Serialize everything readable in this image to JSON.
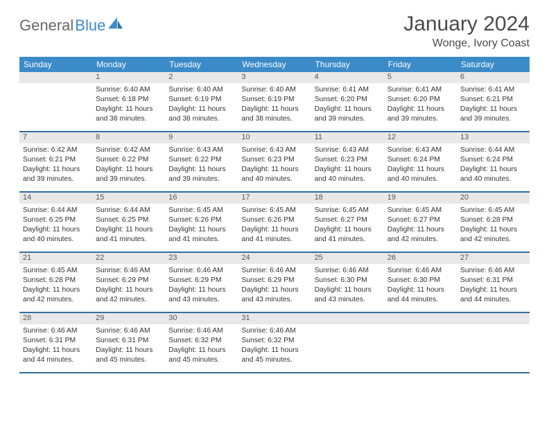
{
  "logo": {
    "word1": "General",
    "word2": "Blue"
  },
  "title": "January 2024",
  "location": "Wonge, Ivory Coast",
  "colors": {
    "header_bg": "#3b8bc9",
    "header_text": "#ffffff",
    "rule": "#2f6ea3",
    "daynum_bg": "#e8e8e8",
    "text": "#333333",
    "logo_gray": "#6a6a6a",
    "logo_blue": "#3b8bc9"
  },
  "day_labels": [
    "Sunday",
    "Monday",
    "Tuesday",
    "Wednesday",
    "Thursday",
    "Friday",
    "Saturday"
  ],
  "weeks": [
    [
      {
        "n": "",
        "sunrise": "",
        "sunset": "",
        "daylight": ""
      },
      {
        "n": "1",
        "sunrise": "Sunrise: 6:40 AM",
        "sunset": "Sunset: 6:18 PM",
        "daylight": "Daylight: 11 hours and 38 minutes."
      },
      {
        "n": "2",
        "sunrise": "Sunrise: 6:40 AM",
        "sunset": "Sunset: 6:19 PM",
        "daylight": "Daylight: 11 hours and 38 minutes."
      },
      {
        "n": "3",
        "sunrise": "Sunrise: 6:40 AM",
        "sunset": "Sunset: 6:19 PM",
        "daylight": "Daylight: 11 hours and 38 minutes."
      },
      {
        "n": "4",
        "sunrise": "Sunrise: 6:41 AM",
        "sunset": "Sunset: 6:20 PM",
        "daylight": "Daylight: 11 hours and 39 minutes."
      },
      {
        "n": "5",
        "sunrise": "Sunrise: 6:41 AM",
        "sunset": "Sunset: 6:20 PM",
        "daylight": "Daylight: 11 hours and 39 minutes."
      },
      {
        "n": "6",
        "sunrise": "Sunrise: 6:41 AM",
        "sunset": "Sunset: 6:21 PM",
        "daylight": "Daylight: 11 hours and 39 minutes."
      }
    ],
    [
      {
        "n": "7",
        "sunrise": "Sunrise: 6:42 AM",
        "sunset": "Sunset: 6:21 PM",
        "daylight": "Daylight: 11 hours and 39 minutes."
      },
      {
        "n": "8",
        "sunrise": "Sunrise: 6:42 AM",
        "sunset": "Sunset: 6:22 PM",
        "daylight": "Daylight: 11 hours and 39 minutes."
      },
      {
        "n": "9",
        "sunrise": "Sunrise: 6:43 AM",
        "sunset": "Sunset: 6:22 PM",
        "daylight": "Daylight: 11 hours and 39 minutes."
      },
      {
        "n": "10",
        "sunrise": "Sunrise: 6:43 AM",
        "sunset": "Sunset: 6:23 PM",
        "daylight": "Daylight: 11 hours and 40 minutes."
      },
      {
        "n": "11",
        "sunrise": "Sunrise: 6:43 AM",
        "sunset": "Sunset: 6:23 PM",
        "daylight": "Daylight: 11 hours and 40 minutes."
      },
      {
        "n": "12",
        "sunrise": "Sunrise: 6:43 AM",
        "sunset": "Sunset: 6:24 PM",
        "daylight": "Daylight: 11 hours and 40 minutes."
      },
      {
        "n": "13",
        "sunrise": "Sunrise: 6:44 AM",
        "sunset": "Sunset: 6:24 PM",
        "daylight": "Daylight: 11 hours and 40 minutes."
      }
    ],
    [
      {
        "n": "14",
        "sunrise": "Sunrise: 6:44 AM",
        "sunset": "Sunset: 6:25 PM",
        "daylight": "Daylight: 11 hours and 40 minutes."
      },
      {
        "n": "15",
        "sunrise": "Sunrise: 6:44 AM",
        "sunset": "Sunset: 6:25 PM",
        "daylight": "Daylight: 11 hours and 41 minutes."
      },
      {
        "n": "16",
        "sunrise": "Sunrise: 6:45 AM",
        "sunset": "Sunset: 6:26 PM",
        "daylight": "Daylight: 11 hours and 41 minutes."
      },
      {
        "n": "17",
        "sunrise": "Sunrise: 6:45 AM",
        "sunset": "Sunset: 6:26 PM",
        "daylight": "Daylight: 11 hours and 41 minutes."
      },
      {
        "n": "18",
        "sunrise": "Sunrise: 6:45 AM",
        "sunset": "Sunset: 6:27 PM",
        "daylight": "Daylight: 11 hours and 41 minutes."
      },
      {
        "n": "19",
        "sunrise": "Sunrise: 6:45 AM",
        "sunset": "Sunset: 6:27 PM",
        "daylight": "Daylight: 11 hours and 42 minutes."
      },
      {
        "n": "20",
        "sunrise": "Sunrise: 6:45 AM",
        "sunset": "Sunset: 6:28 PM",
        "daylight": "Daylight: 11 hours and 42 minutes."
      }
    ],
    [
      {
        "n": "21",
        "sunrise": "Sunrise: 6:45 AM",
        "sunset": "Sunset: 6:28 PM",
        "daylight": "Daylight: 11 hours and 42 minutes."
      },
      {
        "n": "22",
        "sunrise": "Sunrise: 6:46 AM",
        "sunset": "Sunset: 6:29 PM",
        "daylight": "Daylight: 11 hours and 42 minutes."
      },
      {
        "n": "23",
        "sunrise": "Sunrise: 6:46 AM",
        "sunset": "Sunset: 6:29 PM",
        "daylight": "Daylight: 11 hours and 43 minutes."
      },
      {
        "n": "24",
        "sunrise": "Sunrise: 6:46 AM",
        "sunset": "Sunset: 6:29 PM",
        "daylight": "Daylight: 11 hours and 43 minutes."
      },
      {
        "n": "25",
        "sunrise": "Sunrise: 6:46 AM",
        "sunset": "Sunset: 6:30 PM",
        "daylight": "Daylight: 11 hours and 43 minutes."
      },
      {
        "n": "26",
        "sunrise": "Sunrise: 6:46 AM",
        "sunset": "Sunset: 6:30 PM",
        "daylight": "Daylight: 11 hours and 44 minutes."
      },
      {
        "n": "27",
        "sunrise": "Sunrise: 6:46 AM",
        "sunset": "Sunset: 6:31 PM",
        "daylight": "Daylight: 11 hours and 44 minutes."
      }
    ],
    [
      {
        "n": "28",
        "sunrise": "Sunrise: 6:46 AM",
        "sunset": "Sunset: 6:31 PM",
        "daylight": "Daylight: 11 hours and 44 minutes."
      },
      {
        "n": "29",
        "sunrise": "Sunrise: 6:46 AM",
        "sunset": "Sunset: 6:31 PM",
        "daylight": "Daylight: 11 hours and 45 minutes."
      },
      {
        "n": "30",
        "sunrise": "Sunrise: 6:46 AM",
        "sunset": "Sunset: 6:32 PM",
        "daylight": "Daylight: 11 hours and 45 minutes."
      },
      {
        "n": "31",
        "sunrise": "Sunrise: 6:46 AM",
        "sunset": "Sunset: 6:32 PM",
        "daylight": "Daylight: 11 hours and 45 minutes."
      },
      {
        "n": "",
        "sunrise": "",
        "sunset": "",
        "daylight": ""
      },
      {
        "n": "",
        "sunrise": "",
        "sunset": "",
        "daylight": ""
      },
      {
        "n": "",
        "sunrise": "",
        "sunset": "",
        "daylight": ""
      }
    ]
  ]
}
